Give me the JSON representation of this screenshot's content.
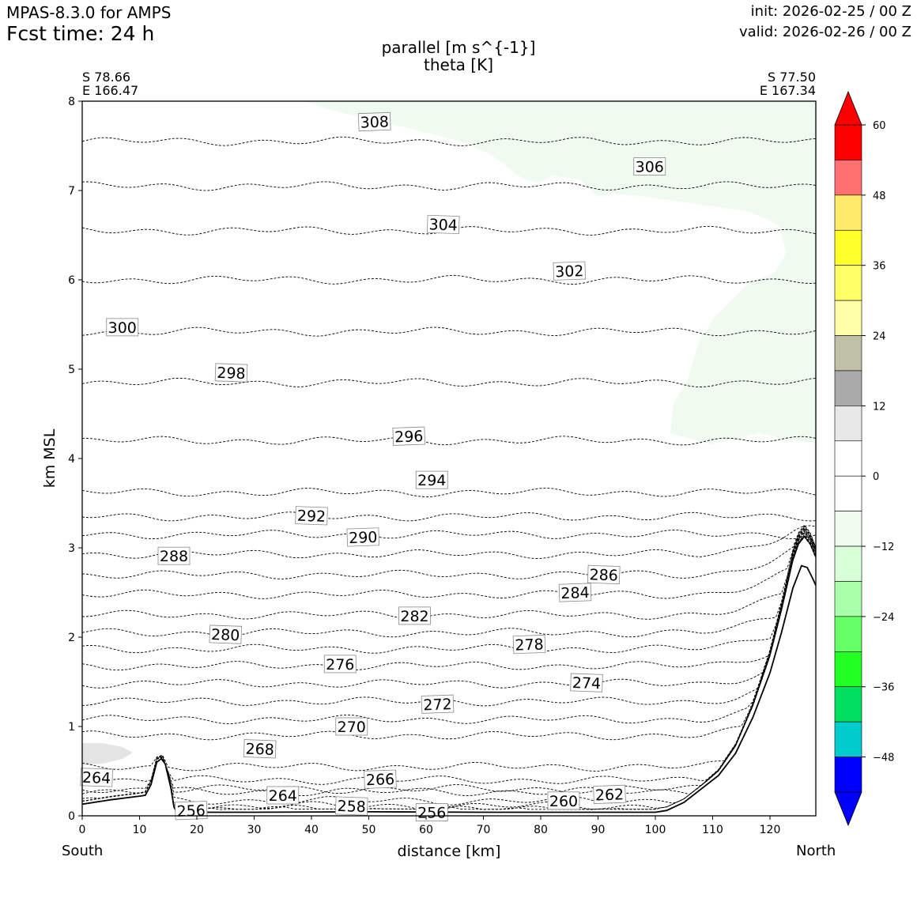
{
  "header": {
    "model": "MPAS-8.3.0 for AMPS",
    "fcst_time": "Fcst time:   24 h",
    "init": "init: 2026-02-25 / 00 Z",
    "valid": "valid: 2026-02-26 / 00 Z"
  },
  "title": {
    "line1": "parallel [m s^{-1}]",
    "line2": "theta [K]"
  },
  "endpoints": {
    "left_lat": "S 78.66",
    "left_lon": "E 166.47",
    "right_lat": "S 77.50",
    "right_lon": "E 167.34",
    "left_dir": "South",
    "right_dir": "North"
  },
  "chart_data": {
    "type": "contour",
    "title": "parallel [m s^{-1}] / theta [K]",
    "xlabel": "distance [km]",
    "ylabel": "km MSL",
    "xlim": [
      0,
      128
    ],
    "ylim": [
      0,
      8
    ],
    "xticks": [
      "0",
      "10",
      "20",
      "30",
      "40",
      "50",
      "60",
      "70",
      "80",
      "90",
      "100",
      "110",
      "120"
    ],
    "yticks": [
      "0",
      "1",
      "2",
      "3",
      "4",
      "5",
      "6",
      "7",
      "8"
    ],
    "theta_contours": [
      {
        "value": "308",
        "baseline_km": 7.55,
        "label_x": 51,
        "label_y": 7.77
      },
      {
        "value": "306",
        "baseline_km": 7.05,
        "label_x": 99,
        "label_y": 7.27
      },
      {
        "value": "304",
        "baseline_km": 6.55,
        "label_x": 63,
        "label_y": 6.62
      },
      {
        "value": "302",
        "baseline_km": 6.0,
        "label_x": 85,
        "label_y": 6.1
      },
      {
        "value": "300",
        "baseline_km": 5.42,
        "label_x": 7,
        "label_y": 5.47
      },
      {
        "value": "298",
        "baseline_km": 4.85,
        "label_x": 26,
        "label_y": 4.96
      },
      {
        "value": "296",
        "baseline_km": 4.2,
        "label_x": 57,
        "label_y": 4.25
      },
      {
        "value": "294",
        "baseline_km": 3.62,
        "label_x": 61,
        "label_y": 3.76
      },
      {
        "value": "292",
        "baseline_km": 3.35,
        "label_x": 40,
        "label_y": 3.36
      },
      {
        "value": "290",
        "baseline_km": 3.15,
        "label_x": 49,
        "label_y": 3.12
      },
      {
        "value": "288",
        "baseline_km": 2.93,
        "label_x": 16,
        "label_y": 2.91
      },
      {
        "value": "286",
        "baseline_km": 2.7,
        "label_x": 91,
        "label_y": 2.7
      },
      {
        "value": "284",
        "baseline_km": 2.48,
        "label_x": 86,
        "label_y": 2.5
      },
      {
        "value": "282",
        "baseline_km": 2.25,
        "label_x": 58,
        "label_y": 2.24
      },
      {
        "value": "280",
        "baseline_km": 2.05,
        "label_x": 25,
        "label_y": 2.03
      },
      {
        "value": "278",
        "baseline_km": 1.87,
        "label_x": 78,
        "label_y": 1.92
      },
      {
        "value": "276",
        "baseline_km": 1.68,
        "label_x": 45,
        "label_y": 1.7
      },
      {
        "value": "274",
        "baseline_km": 1.48,
        "label_x": 88,
        "label_y": 1.49
      },
      {
        "value": "272",
        "baseline_km": 1.28,
        "label_x": 62,
        "label_y": 1.25
      },
      {
        "value": "270",
        "baseline_km": 1.08,
        "label_x": 47,
        "label_y": 1.0
      },
      {
        "value": "268",
        "baseline_km": 0.9,
        "label_x": 31,
        "label_y": 0.75
      },
      {
        "value": "266",
        "baseline_km": 0.55,
        "label_x": 52,
        "label_y": 0.41
      },
      {
        "value": "264",
        "baseline_km": 0.3,
        "label_x": 35,
        "label_y": 0.23
      },
      {
        "value": "264",
        "baseline_km": 0.4,
        "label_x": 2.5,
        "label_y": 0.43
      },
      {
        "value": "262",
        "baseline_km": 0.27,
        "label_x": 92,
        "label_y": 0.24
      },
      {
        "value": "260",
        "baseline_km": 0.17,
        "label_x": 84,
        "label_y": 0.17
      },
      {
        "value": "258",
        "baseline_km": 0.11,
        "label_x": 47,
        "label_y": 0.11
      },
      {
        "value": "256",
        "baseline_km": 0.07,
        "label_x": 19,
        "label_y": 0.06
      },
      {
        "value": "256",
        "baseline_km": 0.06,
        "label_x": 61,
        "label_y": 0.04
      }
    ],
    "terrain_km": [
      [
        0,
        0.13
      ],
      [
        5,
        0.18
      ],
      [
        10,
        0.22
      ],
      [
        11,
        0.23
      ],
      [
        12,
        0.35
      ],
      [
        13,
        0.6
      ],
      [
        13.8,
        0.64
      ],
      [
        14.5,
        0.58
      ],
      [
        15.5,
        0.3
      ],
      [
        16,
        0.1
      ],
      [
        16.5,
        0.04
      ],
      [
        30,
        0.04
      ],
      [
        50,
        0.045
      ],
      [
        70,
        0.04
      ],
      [
        100,
        0.04
      ],
      [
        102,
        0.06
      ],
      [
        105,
        0.15
      ],
      [
        108,
        0.3
      ],
      [
        111,
        0.45
      ],
      [
        114,
        0.7
      ],
      [
        117,
        1.1
      ],
      [
        120,
        1.6
      ],
      [
        122,
        2.05
      ],
      [
        124,
        2.55
      ],
      [
        125.5,
        2.8
      ],
      [
        126.5,
        2.78
      ],
      [
        127.5,
        2.65
      ],
      [
        128,
        2.58
      ]
    ],
    "shading": [
      {
        "range": "-12 to -6",
        "color": "#f0fbf0",
        "region": "upper right, above about 4.2 km"
      },
      {
        "range": "6 to 12",
        "color": "#e4e4e4",
        "region": "near 0.7 km, 0 to 9 km"
      }
    ],
    "colorbar": {
      "tick_labels": [
        "60",
        "48",
        "36",
        "24",
        "12",
        "0",
        "−12",
        "−24",
        "−36",
        "−48"
      ],
      "boundaries": [
        60,
        54,
        48,
        42,
        36,
        30,
        24,
        18,
        12,
        6,
        0,
        -6,
        -12,
        -18,
        -24,
        -30,
        -36,
        -42,
        -48,
        -54
      ],
      "colors": [
        "#ff0000",
        "#ff7070",
        "#ffea6a",
        "#ffff2a",
        "#ffff66",
        "#ffffaa",
        "#c0c0a8",
        "#aaaaaa",
        "#e8e8e8",
        "#ffffff",
        "#ffffff",
        "#f0fbf0",
        "#d8ffd8",
        "#aaffaa",
        "#66ff66",
        "#22ff22",
        "#00e060",
        "#00cccc",
        "#0000ff"
      ],
      "extend": "both"
    }
  }
}
